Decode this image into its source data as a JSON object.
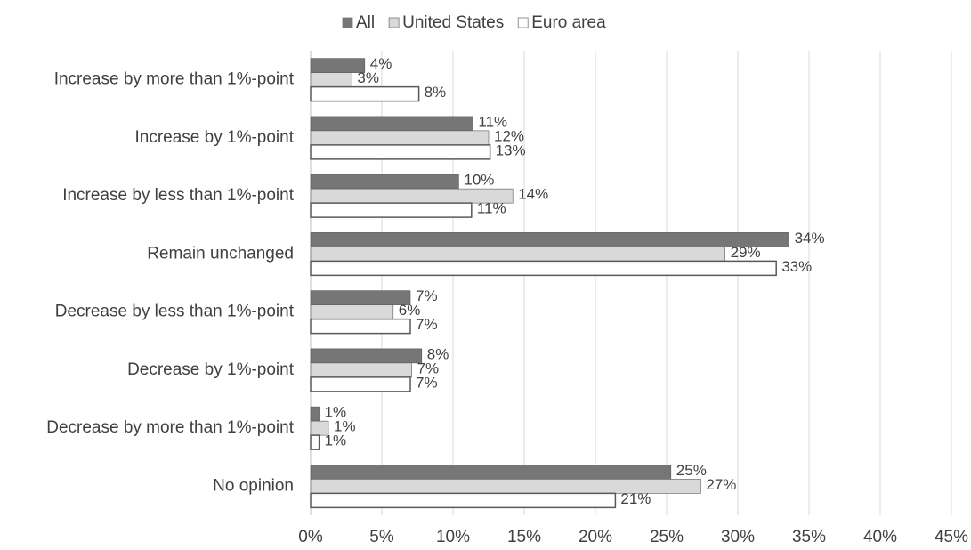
{
  "chart_data": {
    "type": "hbar",
    "categories": [
      "Increase by more than 1%-point",
      "Increase by 1%-point",
      "Increase by less than 1%-point",
      "Remain unchanged",
      "Decrease by less than 1%-point",
      "Decrease by 1%-point",
      "Decrease by more than 1%-point",
      "No opinion"
    ],
    "series": [
      {
        "name": "All",
        "color": "#767676",
        "values": [
          3.8,
          11.4,
          10.4,
          33.6,
          7.0,
          7.8,
          0.6,
          25.3
        ],
        "value_labels": [
          "4%",
          "11%",
          "10%",
          "34%",
          "7%",
          "8%",
          "1%",
          "25%"
        ]
      },
      {
        "name": "United States",
        "color": "#d9d9d9",
        "values": [
          2.9,
          12.5,
          14.2,
          29.1,
          5.8,
          7.1,
          1.25,
          27.4
        ],
        "value_labels": [
          "3%",
          "12%",
          "14%",
          "29%",
          "6%",
          "7%",
          "1%",
          "27%"
        ]
      },
      {
        "name": "Euro area",
        "color": "#ffffff",
        "values": [
          7.6,
          12.6,
          11.3,
          32.7,
          7.0,
          7.0,
          0.6,
          21.4
        ],
        "value_labels": [
          "8%",
          "13%",
          "11%",
          "33%",
          "7%",
          "7%",
          "1%",
          "21%"
        ]
      }
    ],
    "xlim": [
      0,
      45
    ],
    "xticks": [
      {
        "value": 0,
        "label": "0%"
      },
      {
        "value": 5,
        "label": "5%"
      },
      {
        "value": 10,
        "label": "10%"
      },
      {
        "value": 15,
        "label": "15%"
      },
      {
        "value": 20,
        "label": "20%"
      },
      {
        "value": 25,
        "label": "25%"
      },
      {
        "value": 30,
        "label": "30%"
      },
      {
        "value": 35,
        "label": "35%"
      },
      {
        "value": 40,
        "label": "40%"
      },
      {
        "value": 45,
        "label": "45%"
      }
    ],
    "grid": true,
    "legend": "top"
  }
}
